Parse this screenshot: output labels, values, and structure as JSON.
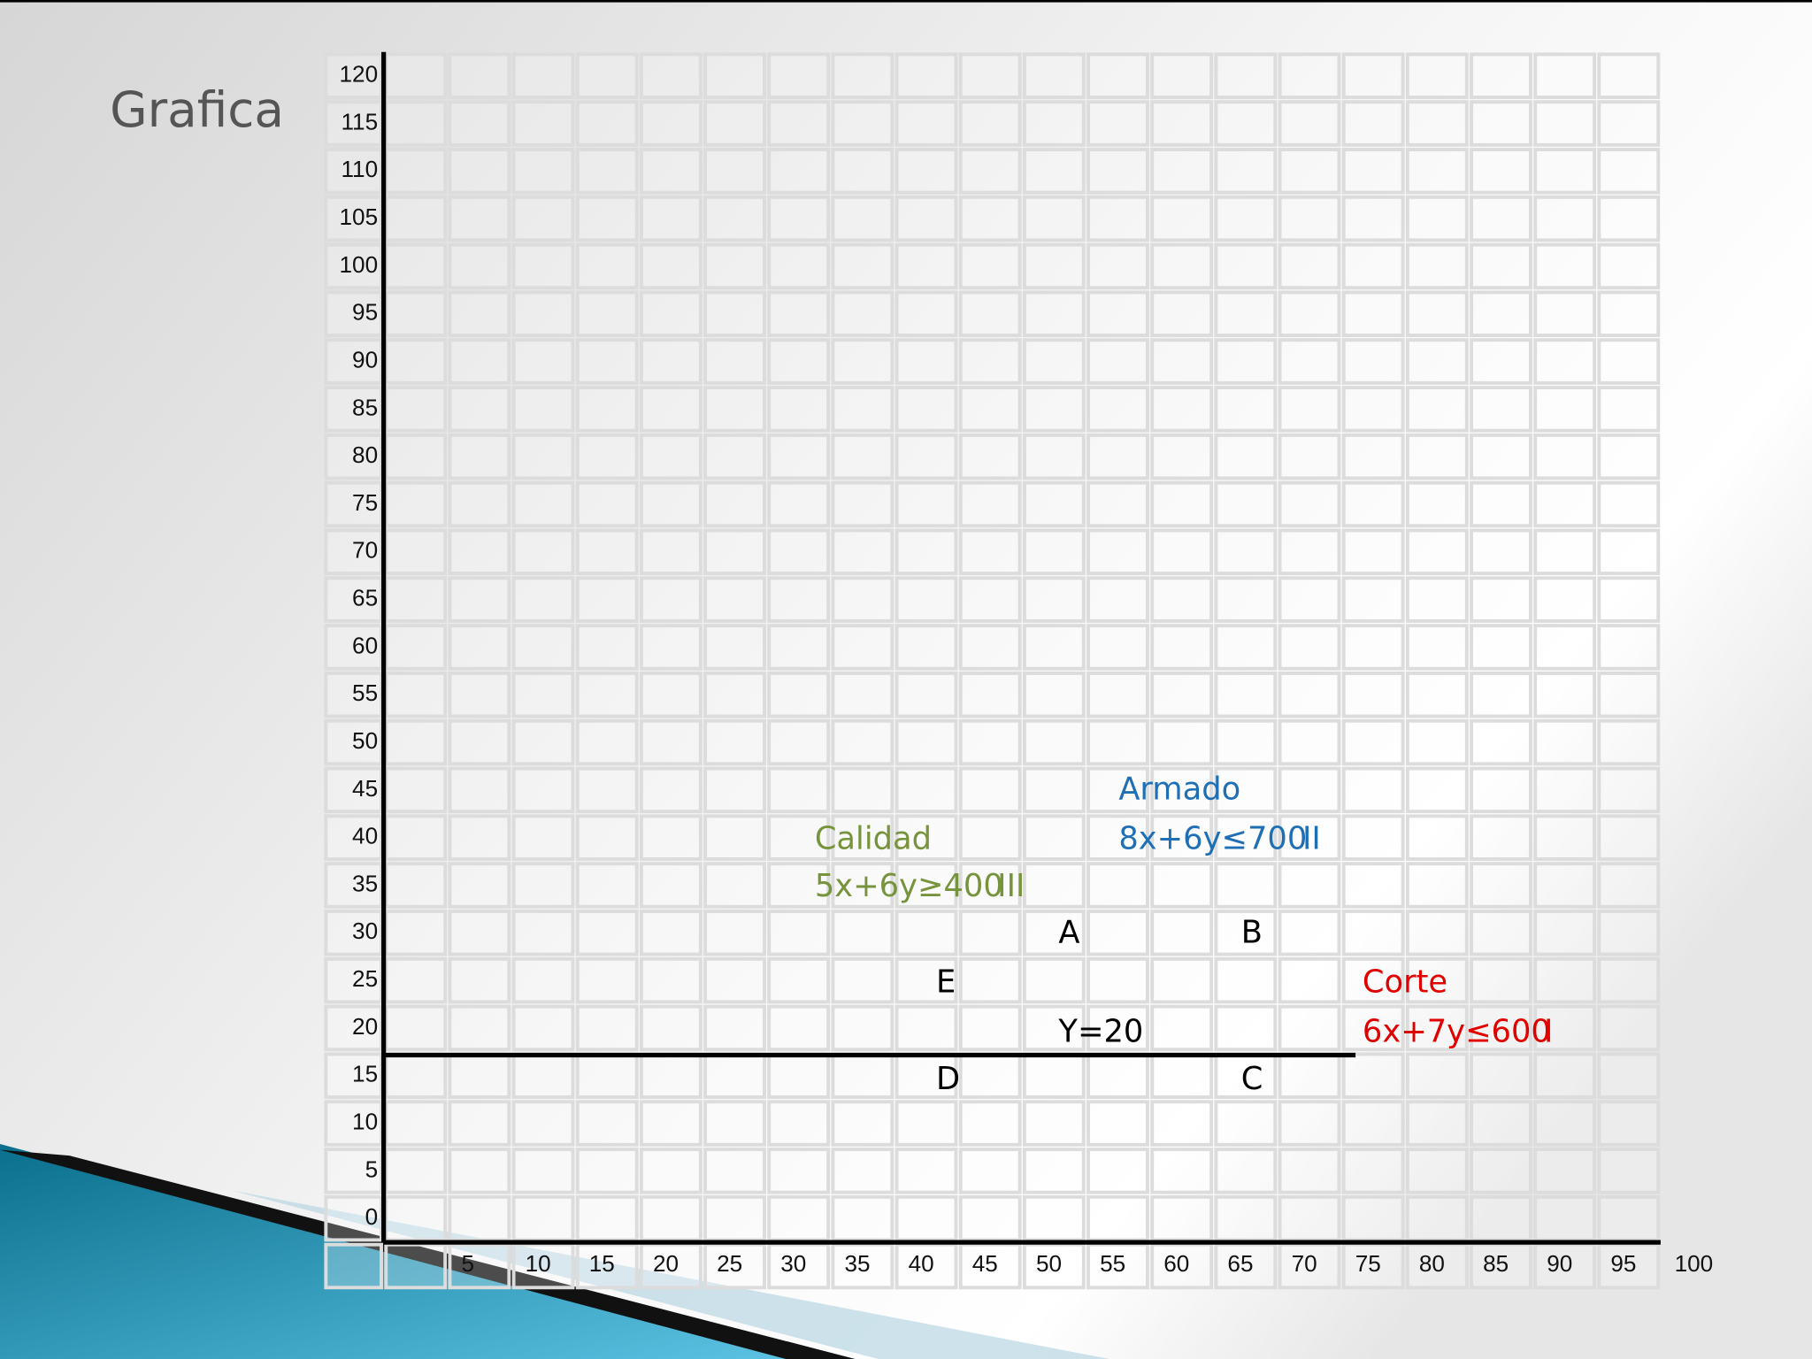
{
  "header": {
    "title": "Grafica"
  },
  "axes": {
    "y_labels": [
      120,
      115,
      110,
      105,
      100,
      95,
      90,
      85,
      80,
      75,
      70,
      65,
      60,
      55,
      50,
      45,
      40,
      35,
      30,
      25,
      20,
      15,
      10,
      5,
      0
    ],
    "x_labels": [
      5,
      10,
      15,
      20,
      25,
      30,
      35,
      40,
      45,
      50,
      55,
      60,
      65,
      70,
      75,
      80,
      85,
      90,
      95,
      100
    ]
  },
  "annotations": [
    {
      "text": "Armado",
      "color": "#1f6fb5"
    },
    {
      "text": "8x+6y≤700",
      "color": "#1f6fb5"
    },
    {
      "text": "II",
      "color": "#1f6fb5"
    },
    {
      "text": "Calidad",
      "color": "#77933c"
    },
    {
      "text": "5x+6y≥400",
      "color": "#77933c"
    },
    {
      "text": "III",
      "color": "#77933c"
    },
    {
      "text": "A",
      "color": "#000000"
    },
    {
      "text": "B",
      "color": "#000000"
    },
    {
      "text": "E",
      "color": "#000000"
    },
    {
      "text": "Corte",
      "color": "#e00000"
    },
    {
      "text": "Y=20",
      "color": "#000000"
    },
    {
      "text": "6x+7y≤600",
      "color": "#e00000"
    },
    {
      "text": "I",
      "color": "#e00000"
    },
    {
      "text": "D",
      "color": "#000000"
    },
    {
      "text": "C",
      "color": "#000000"
    }
  ]
}
